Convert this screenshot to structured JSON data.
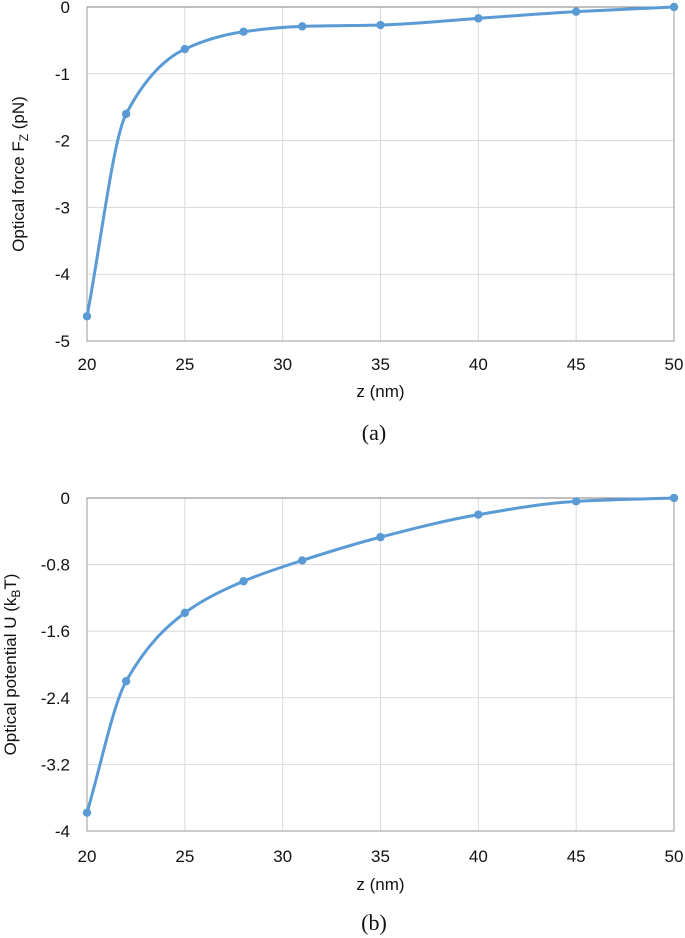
{
  "colors": {
    "series": "#5b9bd5",
    "grid": "#d9d9d9",
    "frame": "#9a9a9a"
  },
  "chart_data": [
    {
      "type": "line",
      "smooth": true,
      "markers": true,
      "grid": true,
      "caption": "(a)",
      "xlabel": "z (nm)",
      "ylabel_main": "Optical force F",
      "ylabel_sub": "Z",
      "ylabel_tail": " (pN)",
      "xlim": [
        20,
        50
      ],
      "ylim": [
        -5,
        0
      ],
      "x_ticks": [
        20,
        25,
        30,
        35,
        40,
        45,
        50
      ],
      "y_ticks": [
        -5,
        -4,
        -3,
        -2,
        -1,
        0
      ],
      "series": [
        {
          "x": [
            20,
            22,
            25,
            28,
            31,
            35,
            40,
            45,
            50
          ],
          "y": [
            -4.63,
            -1.6,
            -0.63,
            -0.37,
            -0.29,
            -0.27,
            -0.17,
            -0.07,
            0.0
          ]
        }
      ]
    },
    {
      "type": "line",
      "smooth": true,
      "markers": true,
      "grid": true,
      "caption": "(b)",
      "xlabel": "z (nm)",
      "ylabel_main": "Optical potential U (k",
      "ylabel_sub": "B",
      "ylabel_tail": "T)",
      "xlim": [
        20,
        50
      ],
      "ylim": [
        -4,
        0
      ],
      "x_ticks": [
        20,
        25,
        30,
        35,
        40,
        45,
        50
      ],
      "y_ticks": [
        -4,
        -3.2,
        -2.4,
        -1.6,
        -0.8,
        0
      ],
      "series": [
        {
          "x": [
            20,
            22,
            25,
            28,
            31,
            35,
            40,
            45,
            50
          ],
          "y": [
            -3.78,
            -2.2,
            -1.38,
            -1.0,
            -0.75,
            -0.47,
            -0.2,
            -0.04,
            0.0
          ]
        }
      ]
    }
  ]
}
